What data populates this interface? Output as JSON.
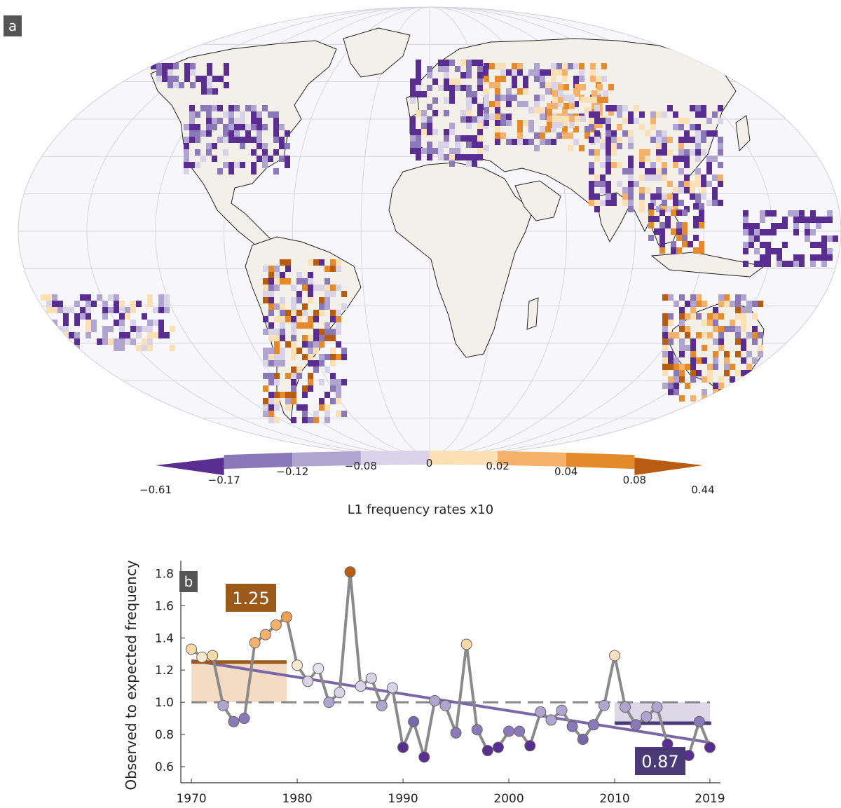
{
  "panels": {
    "a": "a",
    "b": "b"
  },
  "colorbar": {
    "title": "L1 frequency rates x10",
    "ticks": [
      "−0.61",
      "−0.17",
      "−0.12",
      "−0.08",
      "0",
      "0.02",
      "0.04",
      "0.08",
      "0.44"
    ],
    "colors": [
      "#5a2d91",
      "#8a78b8",
      "#b0a5d1",
      "#d8d3e8",
      "#fbe0b6",
      "#f5b06a",
      "#e48a2a",
      "#b85c12"
    ]
  },
  "chart_data": {
    "type": "line",
    "ylabel": "Observed to expected frequency",
    "xlabel": "",
    "xlim": [
      1969,
      2020
    ],
    "ylim": [
      0.5,
      1.88
    ],
    "x_ticks": [
      "1970",
      "1980",
      "1990",
      "2000",
      "2010",
      "2019"
    ],
    "y_ticks": [
      "0.6",
      "0.8",
      "1.0",
      "1.2",
      "1.4",
      "1.6",
      "1.8"
    ],
    "grid": false,
    "series": [
      {
        "x": [
          1970,
          1971,
          1972,
          1973,
          1974,
          1975,
          1976,
          1977,
          1978,
          1979,
          1980,
          1981,
          1982,
          1983,
          1984,
          1985,
          1986,
          1987,
          1988,
          1989,
          1990,
          1991,
          1992,
          1993,
          1994,
          1995,
          1996,
          1997,
          1998,
          1999,
          2000,
          2001,
          2002,
          2003,
          2004,
          2005,
          2006,
          2007,
          2008,
          2009,
          2010,
          2011,
          2012,
          2013,
          2014,
          2015,
          2016,
          2017,
          2018,
          2019
        ],
        "y": [
          1.33,
          1.28,
          1.29,
          0.98,
          0.88,
          0.9,
          1.37,
          1.42,
          1.48,
          1.53,
          1.23,
          1.13,
          1.21,
          1.0,
          1.06,
          1.81,
          1.1,
          1.15,
          0.98,
          1.09,
          0.72,
          0.88,
          0.66,
          1.01,
          0.98,
          0.81,
          1.36,
          0.83,
          0.7,
          0.72,
          0.82,
          0.82,
          0.73,
          0.94,
          0.89,
          0.95,
          0.85,
          0.77,
          0.86,
          0.98,
          1.29,
          0.97,
          0.86,
          0.91,
          0.97,
          0.74,
          0.66,
          0.67,
          0.88,
          0.72
        ],
        "point_colors": [
          "#fbd9a7",
          "#fbe8cc",
          "#fbd9a7",
          "#b0a5d1",
          "#8a78b8",
          "#8a78b8",
          "#f5b06a",
          "#f5b06a",
          "#f5b06a",
          "#f0a04e",
          "#fbe8cc",
          "#d8d3e8",
          "#e6e1ee",
          "#b0a5d1",
          "#d8d3e8",
          "#b85c12",
          "#d8d3e8",
          "#d8d3e8",
          "#b0a5d1",
          "#d8d3e8",
          "#5a2d91",
          "#7a66aa",
          "#5a2d91",
          "#b0a5d1",
          "#b0a5d1",
          "#8a78b8",
          "#fbd9a7",
          "#8a78b8",
          "#5a2d91",
          "#5a2d91",
          "#8a78b8",
          "#8a78b8",
          "#5a2d91",
          "#b0a5d1",
          "#b0a5d1",
          "#b0a5d1",
          "#8a78b8",
          "#7a66aa",
          "#8a78b8",
          "#b0a5d1",
          "#fbe0c0",
          "#b0a5d1",
          "#8a78b8",
          "#b0a5d1",
          "#b0a5d1",
          "#5a2d91",
          "#5a2d91",
          "#5a2d91",
          "#8a78b8",
          "#5a2d91"
        ]
      }
    ],
    "reference_line": 1.0,
    "trend_line": {
      "x": [
        1970,
        2019
      ],
      "y": [
        1.26,
        0.75
      ],
      "color": "#7b66aa"
    },
    "annotations": [
      {
        "text": "1.25",
        "value": 1.25,
        "x_range": [
          1970,
          1979
        ],
        "color": "#9c5a1a",
        "fill": "#f3dcc3"
      },
      {
        "text": "0.87",
        "value": 0.87,
        "x_range": [
          2010,
          2019
        ],
        "color": "#4b3a78",
        "fill": "#ddd7e8"
      }
    ]
  }
}
